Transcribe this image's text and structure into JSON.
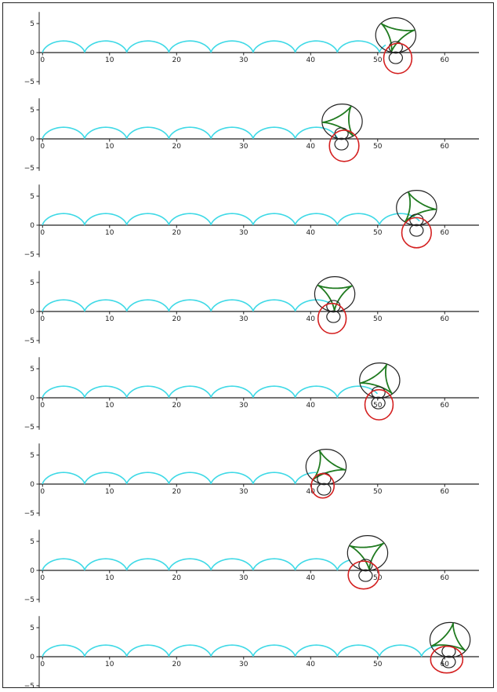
{
  "chart_data": {
    "type": "line",
    "xlim": [
      -0.5,
      66
    ],
    "ylim": [
      -5.5,
      7
    ],
    "xticks": [
      0,
      10,
      20,
      30,
      40,
      50,
      60
    ],
    "yticks": [
      5,
      0,
      -5
    ],
    "xtick_labels": [
      "0",
      "10",
      "20",
      "30",
      "40",
      "50",
      "60"
    ],
    "ytick_labels": [
      "5",
      "0",
      "−5"
    ],
    "grid": false,
    "colors": {
      "axis": "#222222",
      "cycloid": "#3fd9e6",
      "big_circle": "#222222",
      "small_circle": "#222222",
      "deltoid": "#1f7a1f",
      "red_curve": "#d42020"
    },
    "series": [
      {
        "cycloid_radius": 1,
        "arches": 8.3,
        "big_circle": {
          "cx": 52.7,
          "cy": 3.0,
          "r": 3.0
        },
        "deltoid_rotation": 0.3,
        "red_curve": {
          "cx": 53.0,
          "cy": -1.0,
          "rx": 2.1,
          "ry": 2.6
        },
        "small_circles": [
          {
            "cx": 52.7,
            "cy": 0.9,
            "r": 1.0
          },
          {
            "cx": 52.7,
            "cy": -0.9,
            "r": 1.0
          }
        ]
      },
      {
        "cycloid_radius": 1,
        "arches": 6.9,
        "big_circle": {
          "cx": 44.7,
          "cy": 3.0,
          "r": 3.0
        },
        "deltoid_rotation": 1.1,
        "red_curve": {
          "cx": 45.0,
          "cy": -1.2,
          "rx": 2.2,
          "ry": 2.7
        },
        "small_circles": [
          {
            "cx": 44.6,
            "cy": 0.9,
            "r": 1.0
          },
          {
            "cx": 44.6,
            "cy": -0.9,
            "r": 1.0
          }
        ]
      },
      {
        "cycloid_radius": 1,
        "arches": 8.8,
        "big_circle": {
          "cx": 55.8,
          "cy": 3.0,
          "r": 3.0
        },
        "deltoid_rotation": 2.0,
        "red_curve": {
          "cx": 55.8,
          "cy": -1.3,
          "rx": 2.2,
          "ry": 2.6
        },
        "small_circles": [
          {
            "cx": 55.8,
            "cy": 0.9,
            "r": 1.0
          },
          {
            "cx": 55.8,
            "cy": -0.9,
            "r": 1.0
          }
        ]
      },
      {
        "cycloid_radius": 1,
        "arches": 6.7,
        "big_circle": {
          "cx": 43.6,
          "cy": 3.0,
          "r": 3.0
        },
        "deltoid_rotation": 2.6,
        "red_curve": {
          "cx": 43.2,
          "cy": -1.2,
          "rx": 2.1,
          "ry": 2.6
        },
        "small_circles": [
          {
            "cx": 43.4,
            "cy": 0.9,
            "r": 1.0
          },
          {
            "cx": 43.4,
            "cy": -0.9,
            "r": 1.0
          }
        ]
      },
      {
        "cycloid_radius": 1,
        "arches": 7.8,
        "big_circle": {
          "cx": 50.3,
          "cy": 3.0,
          "r": 3.0
        },
        "deltoid_rotation": 3.3,
        "red_curve": {
          "cx": 50.2,
          "cy": -1.2,
          "rx": 2.1,
          "ry": 2.6
        },
        "small_circles": [
          {
            "cx": 50.1,
            "cy": 0.9,
            "r": 1.0
          },
          {
            "cx": 50.1,
            "cy": -0.9,
            "r": 1.0
          }
        ]
      },
      {
        "cycloid_radius": 1,
        "arches": 6.5,
        "big_circle": {
          "cx": 42.3,
          "cy": 3.0,
          "r": 3.0
        },
        "deltoid_rotation": 4.0,
        "red_curve": {
          "cx": 41.8,
          "cy": -0.3,
          "rx": 1.7,
          "ry": 2.1
        },
        "small_circles": [
          {
            "cx": 42.0,
            "cy": 0.9,
            "r": 1.0
          },
          {
            "cx": 42.0,
            "cy": -0.9,
            "r": 1.0
          }
        ]
      },
      {
        "cycloid_radius": 1,
        "arches": 7.4,
        "big_circle": {
          "cx": 48.5,
          "cy": 3.0,
          "r": 3.0
        },
        "deltoid_rotation": 4.8,
        "red_curve": {
          "cx": 47.9,
          "cy": -0.8,
          "rx": 2.3,
          "ry": 2.4
        },
        "small_circles": [
          {
            "cx": 48.2,
            "cy": 0.9,
            "r": 1.0
          },
          {
            "cx": 48.2,
            "cy": -0.9,
            "r": 1.0
          }
        ]
      },
      {
        "cycloid_radius": 1,
        "arches": 9.45,
        "big_circle": {
          "cx": 60.8,
          "cy": 2.9,
          "r": 3.0
        },
        "deltoid_rotation": 5.6,
        "red_curve": {
          "cx": 60.3,
          "cy": -0.5,
          "rx": 2.4,
          "ry": 2.3
        },
        "small_circles": [
          {
            "cx": 60.6,
            "cy": 0.9,
            "r": 1.0
          },
          {
            "cx": 60.6,
            "cy": -0.9,
            "r": 1.0
          }
        ]
      }
    ]
  }
}
